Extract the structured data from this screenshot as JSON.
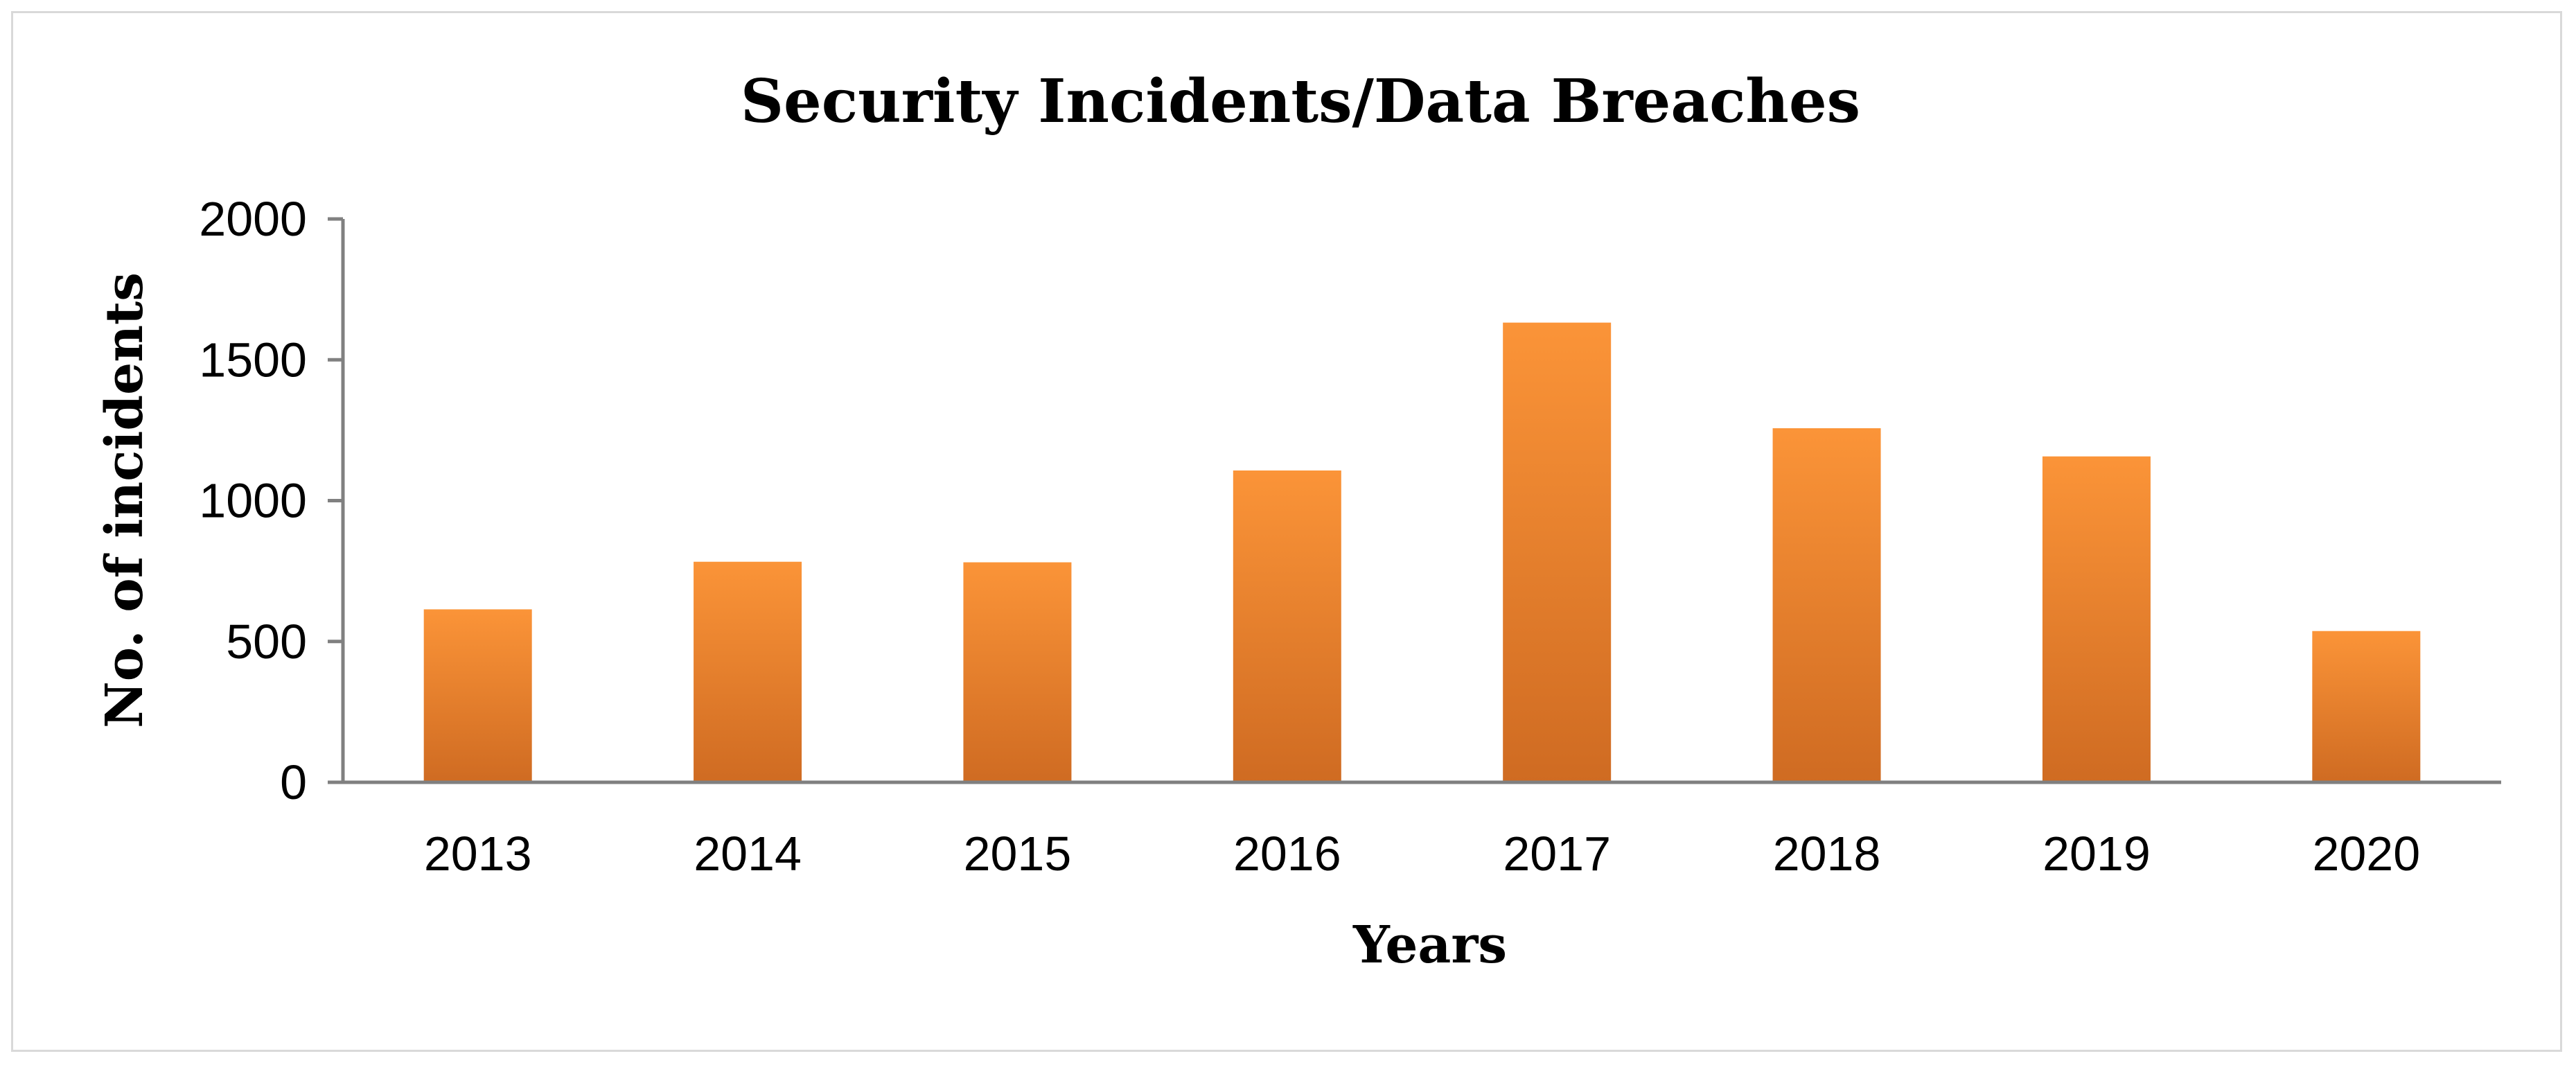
{
  "chart_data": {
    "type": "bar",
    "title": "Security Incidents/Data Breaches",
    "xlabel": "Years",
    "ylabel": "No. of incidents",
    "categories": [
      "2013",
      "2014",
      "2015",
      "2016",
      "2017",
      "2018",
      "2019",
      "2020"
    ],
    "values": [
      614,
      783,
      781,
      1107,
      1632,
      1257,
      1157,
      537
    ],
    "ylim": [
      0,
      2000
    ],
    "yticks": [
      0,
      500,
      1000,
      1500,
      2000
    ],
    "ytick_labels": [
      "0",
      "500",
      "1000",
      "1500",
      "2000"
    ],
    "grid": false,
    "legend": "none",
    "colors": {
      "bar_top": "#fb9438",
      "bar_bottom": "#cf6b22",
      "axis": "#808080",
      "frame": "#d9d9d9"
    }
  }
}
